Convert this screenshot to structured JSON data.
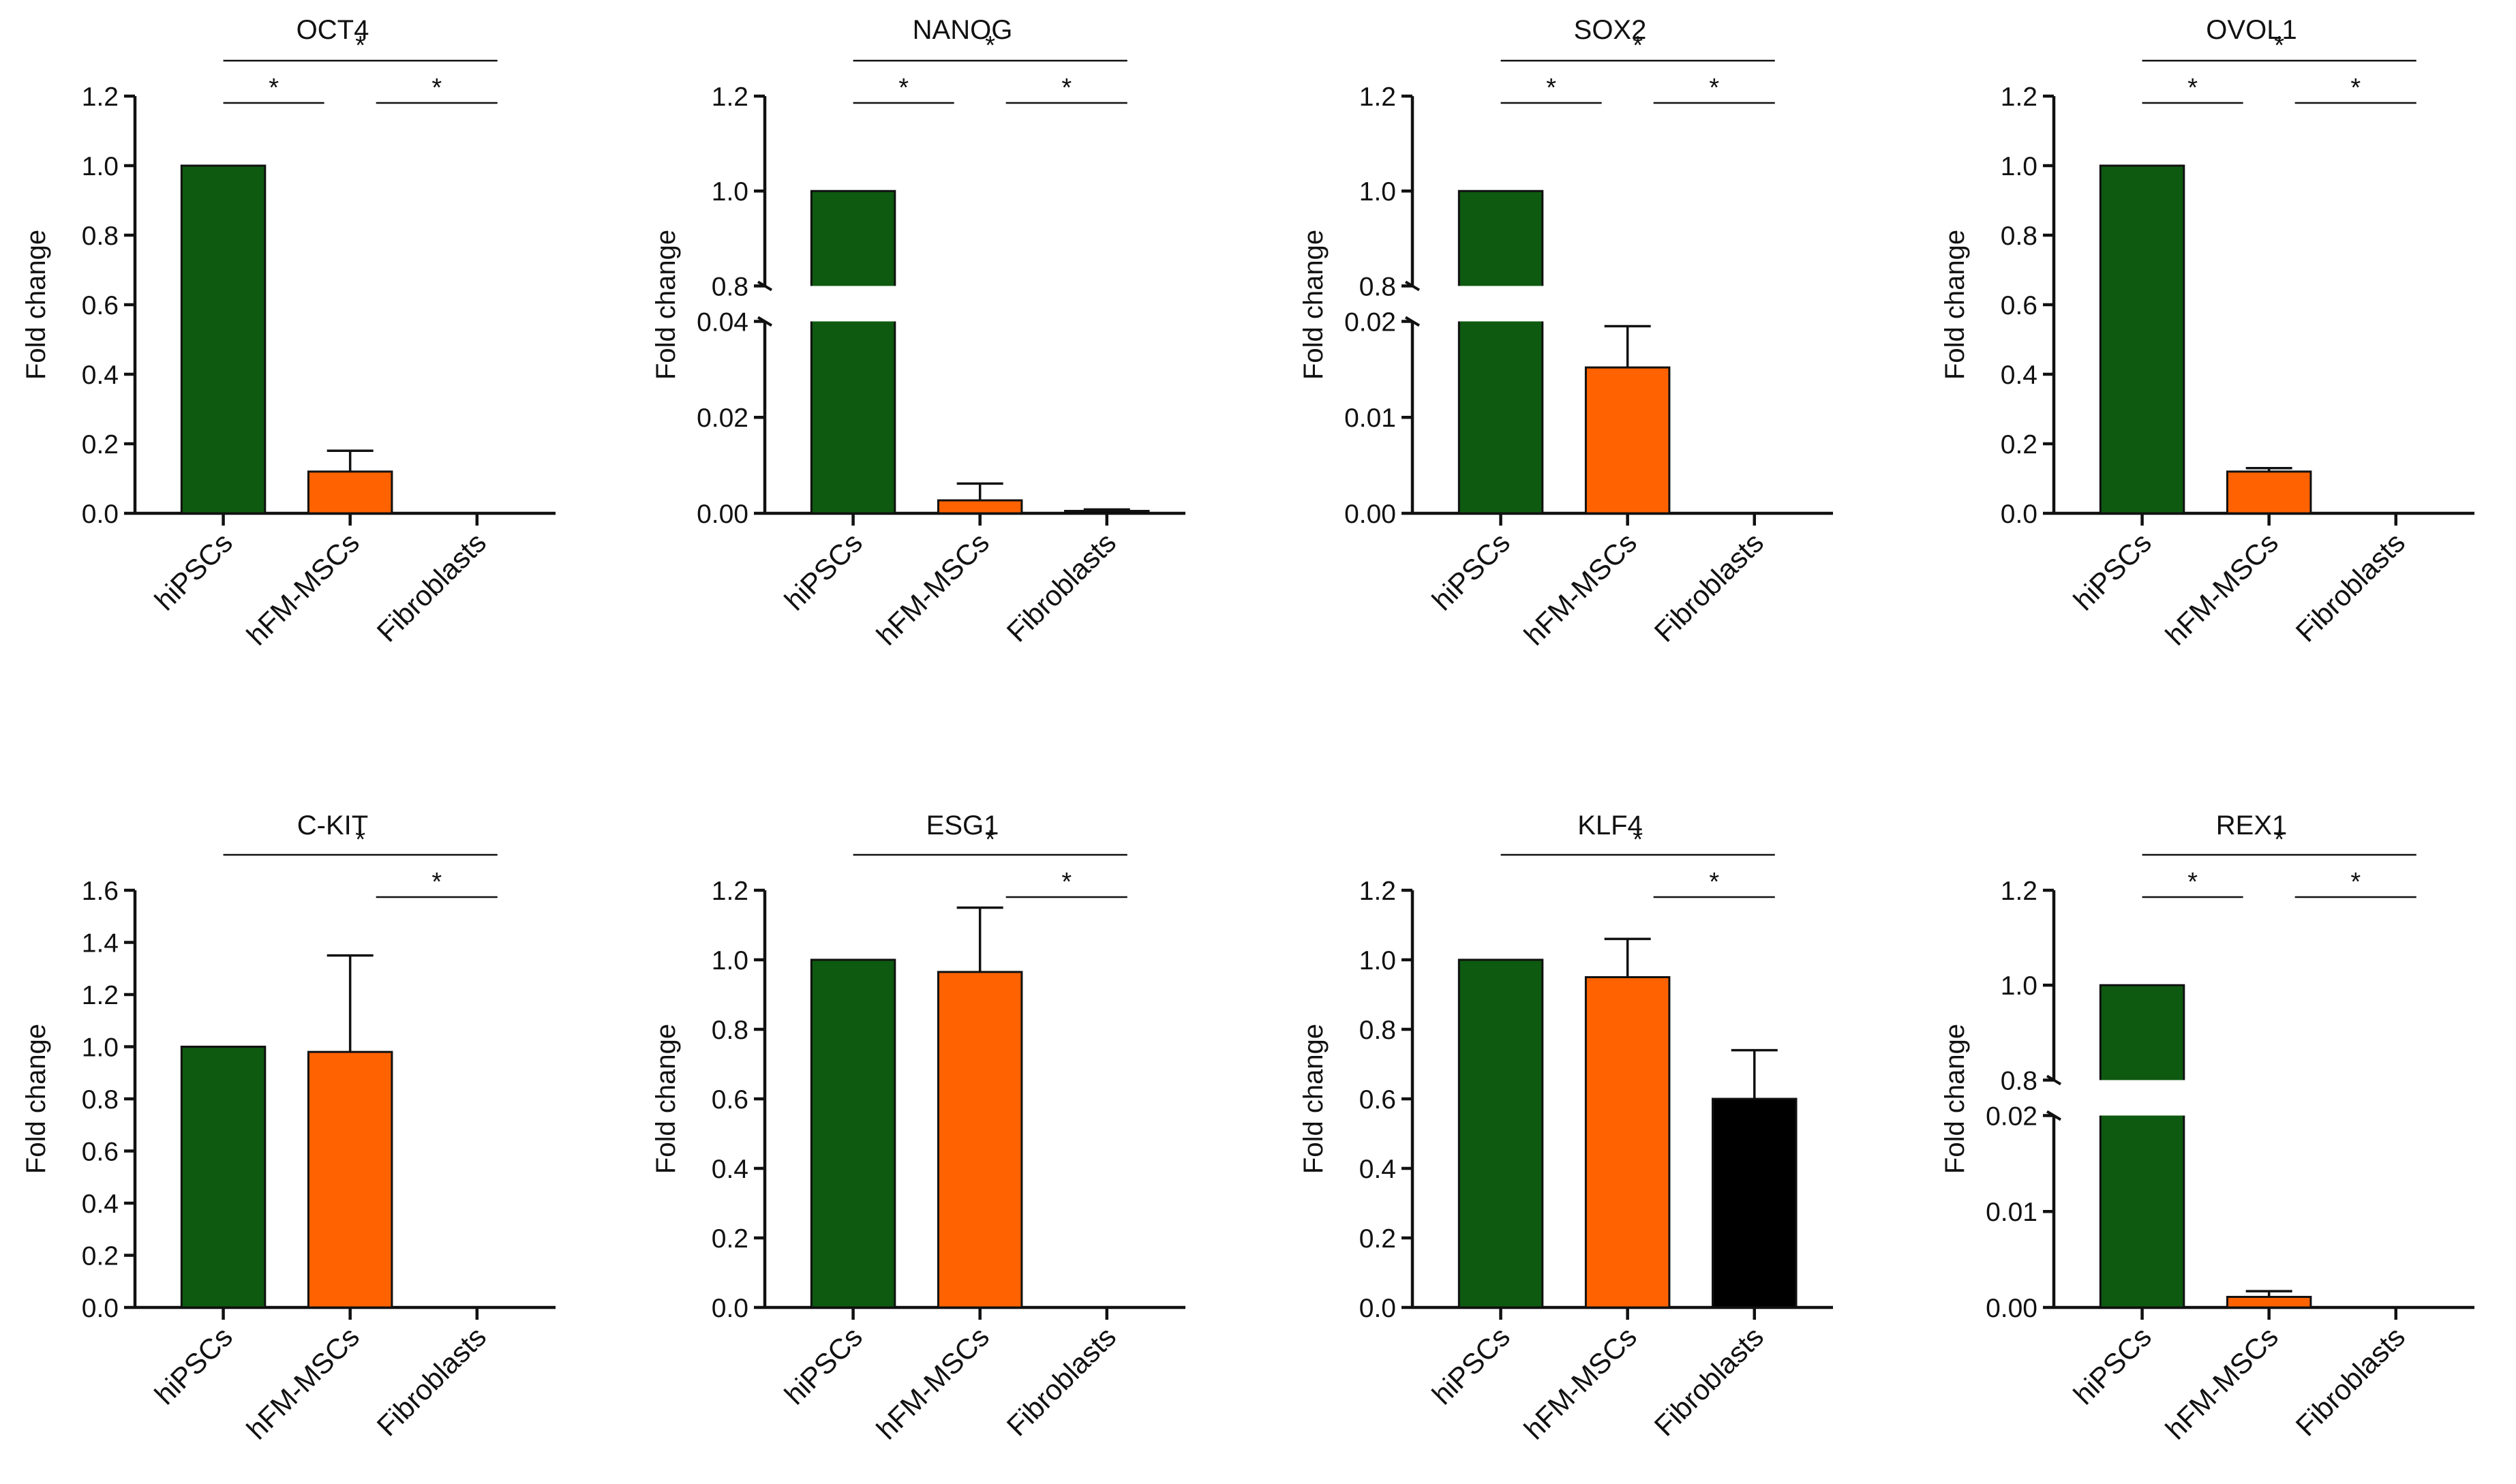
{
  "colors": {
    "hiPSCs": "#0d5a10",
    "hFM-MSCs": "#ff6200",
    "Fibroblasts": "#000000"
  },
  "chart_data": [
    {
      "type": "bar",
      "title": "OCT4",
      "ylabel": "Fold change",
      "categories": [
        "hiPSCs",
        "hFM-MSCs",
        "Fibroblasts"
      ],
      "values": [
        1.0,
        0.12,
        0.0
      ],
      "errors": [
        0.0,
        0.06,
        0.0
      ],
      "ylim": [
        0,
        1.2
      ],
      "yticks": [
        "0.0",
        "0.2",
        "0.4",
        "0.6",
        "0.8",
        "1.0",
        "1.2"
      ],
      "significance": [
        [
          "hiPSCs",
          "Fibroblasts",
          "*"
        ],
        [
          "hiPSCs",
          "hFM-MSCs",
          "*"
        ],
        [
          "hFM-MSCs",
          "Fibroblasts",
          "*"
        ]
      ]
    },
    {
      "type": "bar",
      "title": "NANOG",
      "ylabel": "Fold change",
      "categories": [
        "hiPSCs",
        "hFM-MSCs",
        "Fibroblasts"
      ],
      "values": [
        1.0,
        0.0027,
        0.0005
      ],
      "errors": [
        0.0,
        0.0035,
        0.0003
      ],
      "axis_break": {
        "lower": [
          0,
          0.04
        ],
        "upper": [
          0.8,
          1.2
        ]
      },
      "yticks": [
        "0.00",
        "0.02",
        "0.04",
        "0.8",
        "1.0",
        "1.2"
      ],
      "significance": [
        [
          "hiPSCs",
          "Fibroblasts",
          "*"
        ],
        [
          "hiPSCs",
          "hFM-MSCs",
          "*"
        ],
        [
          "hFM-MSCs",
          "Fibroblasts",
          "*"
        ]
      ]
    },
    {
      "type": "bar",
      "title": "SOX2",
      "ylabel": "Fold change",
      "categories": [
        "hiPSCs",
        "hFM-MSCs",
        "Fibroblasts"
      ],
      "values": [
        1.0,
        0.0152,
        0.0
      ],
      "errors": [
        0.0,
        0.0043,
        0.0
      ],
      "axis_break": {
        "lower": [
          0,
          0.02
        ],
        "upper": [
          0.8,
          1.2
        ]
      },
      "yticks": [
        "0.00",
        "0.01",
        "0.02",
        "0.8",
        "1.0",
        "1.2"
      ],
      "significance": [
        [
          "hiPSCs",
          "Fibroblasts",
          "*"
        ],
        [
          "hiPSCs",
          "hFM-MSCs",
          "*"
        ],
        [
          "hFM-MSCs",
          "Fibroblasts",
          "*"
        ]
      ]
    },
    {
      "type": "bar",
      "title": "OVOL1",
      "ylabel": "Fold change",
      "categories": [
        "hiPSCs",
        "hFM-MSCs",
        "Fibroblasts"
      ],
      "values": [
        1.0,
        0.12,
        0.0
      ],
      "errors": [
        0.0,
        0.01,
        0.0
      ],
      "ylim": [
        0,
        1.2
      ],
      "yticks": [
        "0.0",
        "0.2",
        "0.4",
        "0.6",
        "0.8",
        "1.0",
        "1.2"
      ],
      "significance": [
        [
          "hiPSCs",
          "Fibroblasts",
          "*"
        ],
        [
          "hiPSCs",
          "hFM-MSCs",
          "*"
        ],
        [
          "hFM-MSCs",
          "Fibroblasts",
          "*"
        ]
      ]
    },
    {
      "type": "bar",
      "title": "C-KIT",
      "ylabel": "Fold change",
      "categories": [
        "hiPSCs",
        "hFM-MSCs",
        "Fibroblasts"
      ],
      "values": [
        1.0,
        0.98,
        0.0
      ],
      "errors": [
        0.0,
        0.37,
        0.0
      ],
      "ylim": [
        0,
        1.6
      ],
      "yticks": [
        "0.0",
        "0.2",
        "0.4",
        "0.6",
        "0.8",
        "1.0",
        "1.2",
        "1.4",
        "1.6"
      ],
      "significance": [
        [
          "hiPSCs",
          "Fibroblasts",
          "*"
        ],
        [
          "hFM-MSCs",
          "Fibroblasts",
          "*"
        ]
      ]
    },
    {
      "type": "bar",
      "title": "ESG1",
      "ylabel": "Fold change",
      "categories": [
        "hiPSCs",
        "hFM-MSCs",
        "Fibroblasts"
      ],
      "values": [
        1.0,
        0.965,
        0.0
      ],
      "errors": [
        0.0,
        0.185,
        0.0
      ],
      "ylim": [
        0,
        1.2
      ],
      "yticks": [
        "0.0",
        "0.2",
        "0.4",
        "0.6",
        "0.8",
        "1.0",
        "1.2"
      ],
      "significance": [
        [
          "hiPSCs",
          "Fibroblasts",
          "*"
        ],
        [
          "hFM-MSCs",
          "Fibroblasts",
          "*"
        ]
      ]
    },
    {
      "type": "bar",
      "title": "KLF4",
      "ylabel": "Fold change",
      "categories": [
        "hiPSCs",
        "hFM-MSCs",
        "Fibroblasts"
      ],
      "values": [
        1.0,
        0.95,
        0.6
      ],
      "errors": [
        0.0,
        0.11,
        0.14
      ],
      "ylim": [
        0,
        1.2
      ],
      "yticks": [
        "0.0",
        "0.2",
        "0.4",
        "0.6",
        "0.8",
        "1.0",
        "1.2"
      ],
      "significance": [
        [
          "hiPSCs",
          "Fibroblasts",
          "*"
        ],
        [
          "hFM-MSCs",
          "Fibroblasts",
          "*"
        ]
      ]
    },
    {
      "type": "bar",
      "title": "REX1",
      "ylabel": "Fold change",
      "categories": [
        "hiPSCs",
        "hFM-MSCs",
        "Fibroblasts"
      ],
      "values": [
        1.0,
        0.0011,
        0.0
      ],
      "errors": [
        0.0,
        0.0006,
        0.0
      ],
      "axis_break": {
        "lower": [
          0,
          0.02
        ],
        "upper": [
          0.8,
          1.2
        ]
      },
      "yticks": [
        "0.00",
        "0.01",
        "0.02",
        "0.8",
        "1.0",
        "1.2"
      ],
      "significance": [
        [
          "hiPSCs",
          "Fibroblasts",
          "*"
        ],
        [
          "hiPSCs",
          "hFM-MSCs",
          "*"
        ],
        [
          "hFM-MSCs",
          "Fibroblasts",
          "*"
        ]
      ]
    }
  ]
}
